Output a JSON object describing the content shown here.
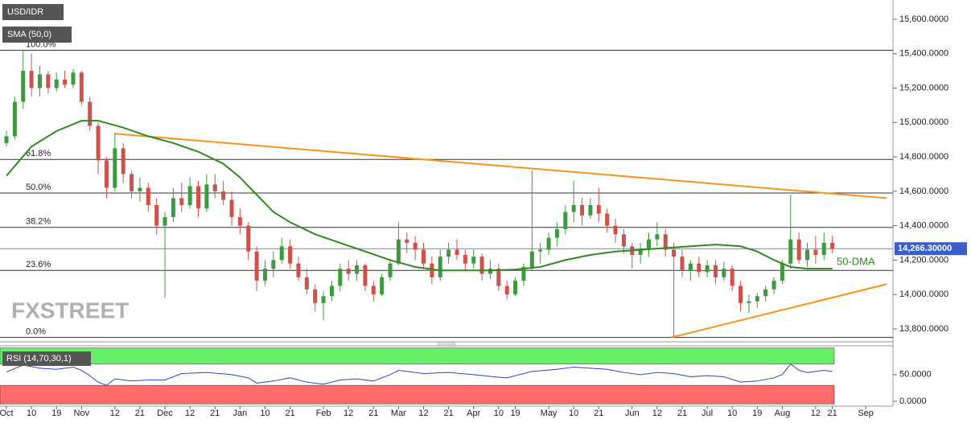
{
  "chart_data": {
    "type": "candlestick",
    "title": "USD/IDR",
    "indicator_label": "SMA (50,0)",
    "watermark": "FXSTREET",
    "up_color": "#3f9a3f",
    "down_color": "#d0504a",
    "categories": [
      "Oct",
      null,
      null,
      "10",
      null,
      null,
      "19",
      null,
      null,
      "Nov",
      null,
      null,
      null,
      "12",
      null,
      null,
      "21",
      null,
      null,
      "Dec",
      null,
      null,
      "12",
      null,
      null,
      "21",
      null,
      null,
      "Jan",
      null,
      null,
      "10",
      null,
      null,
      "21",
      null,
      null,
      null,
      "Feb",
      null,
      null,
      "12",
      null,
      null,
      "21",
      null,
      null,
      "Mar",
      null,
      null,
      "12",
      null,
      null,
      "21",
      null,
      null,
      "Apr",
      null,
      null,
      "10",
      null,
      "19",
      null,
      null,
      null,
      "May",
      null,
      null,
      "10",
      null,
      null,
      "21",
      null,
      null,
      null,
      "Jun",
      null,
      null,
      "12",
      null,
      null,
      "21",
      null,
      null,
      "Jul",
      null,
      null,
      "10",
      null,
      null,
      "19",
      null,
      null,
      "Aug",
      null,
      null,
      null,
      "12",
      null,
      "21",
      null,
      null,
      null,
      "Sep"
    ],
    "candles": [
      [
        14880,
        14950,
        14860,
        14920
      ],
      [
        14920,
        15150,
        14900,
        15120
      ],
      [
        15120,
        15420,
        15080,
        15300
      ],
      [
        15300,
        15400,
        15150,
        15200
      ],
      [
        15200,
        15330,
        15150,
        15280
      ],
      [
        15280,
        15300,
        15170,
        15200
      ],
      [
        15200,
        15290,
        15180,
        15250
      ],
      [
        15250,
        15300,
        15200,
        15220
      ],
      [
        15220,
        15310,
        15200,
        15290
      ],
      [
        15290,
        15300,
        15100,
        15120
      ],
      [
        15120,
        15150,
        14950,
        14980
      ],
      [
        14980,
        15000,
        14700,
        14780
      ],
      [
        14780,
        14800,
        14560,
        14620
      ],
      [
        14620,
        14940,
        14600,
        14850
      ],
      [
        14850,
        14880,
        14650,
        14700
      ],
      [
        14700,
        14720,
        14560,
        14600
      ],
      [
        14600,
        14680,
        14540,
        14620
      ],
      [
        14620,
        14650,
        14480,
        14520
      ],
      [
        14520,
        14560,
        14350,
        14400
      ],
      [
        14400,
        14480,
        13980,
        14450
      ],
      [
        14450,
        14620,
        14420,
        14560
      ],
      [
        14560,
        14650,
        14480,
        14520
      ],
      [
        14520,
        14680,
        14500,
        14630
      ],
      [
        14630,
        14660,
        14450,
        14500
      ],
      [
        14500,
        14700,
        14480,
        14640
      ],
      [
        14640,
        14700,
        14560,
        14600
      ],
      [
        14600,
        14660,
        14520,
        14550
      ],
      [
        14550,
        14600,
        14400,
        14450
      ],
      [
        14450,
        14500,
        14350,
        14400
      ],
      [
        14400,
        14420,
        14200,
        14250
      ],
      [
        14250,
        14280,
        14020,
        14080
      ],
      [
        14080,
        14200,
        14050,
        14150
      ],
      [
        14150,
        14250,
        14100,
        14200
      ],
      [
        14200,
        14330,
        14180,
        14280
      ],
      [
        14280,
        14320,
        14150,
        14180
      ],
      [
        14180,
        14220,
        14080,
        14100
      ],
      [
        14100,
        14150,
        14000,
        14030
      ],
      [
        14030,
        14060,
        13900,
        13950
      ],
      [
        13950,
        14020,
        13850,
        13990
      ],
      [
        13990,
        14080,
        13960,
        14050
      ],
      [
        14050,
        14180,
        14020,
        14150
      ],
      [
        14150,
        14200,
        14080,
        14120
      ],
      [
        14120,
        14200,
        14080,
        14170
      ],
      [
        14170,
        14180,
        14020,
        14050
      ],
      [
        14050,
        14080,
        13960,
        14000
      ],
      [
        14000,
        14120,
        13990,
        14100
      ],
      [
        14100,
        14200,
        14080,
        14180
      ],
      [
        14180,
        14420,
        14170,
        14320
      ],
      [
        14320,
        14360,
        14240,
        14300
      ],
      [
        14300,
        14340,
        14200,
        14260
      ],
      [
        14260,
        14300,
        14150,
        14180
      ],
      [
        14180,
        14220,
        14060,
        14100
      ],
      [
        14100,
        14260,
        14080,
        14220
      ],
      [
        14220,
        14300,
        14180,
        14260
      ],
      [
        14260,
        14320,
        14200,
        14230
      ],
      [
        14230,
        14260,
        14140,
        14180
      ],
      [
        14180,
        14260,
        14150,
        14220
      ],
      [
        14220,
        14240,
        14080,
        14120
      ],
      [
        14120,
        14200,
        14090,
        14150
      ],
      [
        14150,
        14180,
        14020,
        14050
      ],
      [
        14050,
        14080,
        13970,
        14000
      ],
      [
        14000,
        14100,
        13990,
        14080
      ],
      [
        14080,
        14180,
        14050,
        14160
      ],
      [
        14160,
        14720,
        14140,
        14250
      ],
      [
        14250,
        14300,
        14180,
        14260
      ],
      [
        14260,
        14360,
        14230,
        14330
      ],
      [
        14330,
        14420,
        14280,
        14380
      ],
      [
        14380,
        14520,
        14350,
        14480
      ],
      [
        14480,
        14660,
        14420,
        14520
      ],
      [
        14520,
        14560,
        14400,
        14460
      ],
      [
        14460,
        14560,
        14440,
        14520
      ],
      [
        14520,
        14620,
        14420,
        14470
      ],
      [
        14470,
        14500,
        14360,
        14400
      ],
      [
        14400,
        14440,
        14300,
        14350
      ],
      [
        14350,
        14380,
        14240,
        14280
      ],
      [
        14280,
        14300,
        14150,
        14230
      ],
      [
        14230,
        14300,
        14180,
        14260
      ],
      [
        14260,
        14360,
        14220,
        14320
      ],
      [
        14320,
        14420,
        14280,
        14350
      ],
      [
        14350,
        14380,
        14220,
        14260
      ],
      [
        14260,
        14300,
        13750,
        14220
      ],
      [
        14220,
        14260,
        14100,
        14140
      ],
      [
        14140,
        14200,
        14080,
        14180
      ],
      [
        14180,
        14220,
        14100,
        14130
      ],
      [
        14130,
        14200,
        14100,
        14170
      ],
      [
        14170,
        14200,
        14060,
        14100
      ],
      [
        14100,
        14190,
        14080,
        14150
      ],
      [
        14150,
        14170,
        14020,
        14050
      ],
      [
        14050,
        14080,
        13900,
        13950
      ],
      [
        13950,
        14000,
        13890,
        13960
      ],
      [
        13960,
        14010,
        13920,
        13990
      ],
      [
        13990,
        14050,
        13960,
        14030
      ],
      [
        14030,
        14100,
        14000,
        14080
      ],
      [
        14080,
        14200,
        14060,
        14180
      ],
      [
        14180,
        14580,
        14150,
        14320
      ],
      [
        14320,
        14360,
        14180,
        14200
      ],
      [
        14200,
        14300,
        14160,
        14260
      ],
      [
        14260,
        14340,
        14180,
        14230
      ],
      [
        14230,
        14360,
        14200,
        14300
      ],
      [
        14300,
        14340,
        14240,
        14266.3
      ],
      null,
      null,
      null,
      null
    ],
    "ylim": [
      13725,
      15712
    ],
    "yticks": [
      {
        "value": 15600,
        "label": "15,600.0000"
      },
      {
        "value": 15400,
        "label": "15,400.0000"
      },
      {
        "value": 15200,
        "label": "15,200.0000"
      },
      {
        "value": 15000,
        "label": "15,000.0000"
      },
      {
        "value": 14800,
        "label": "14,800.0000"
      },
      {
        "value": 14600,
        "label": "14,600.0000"
      },
      {
        "value": 14400,
        "label": "14,400.0000"
      },
      {
        "value": 14200,
        "label": "14,200.0000"
      },
      {
        "value": 14000,
        "label": "14,000.0000"
      },
      {
        "value": 13800,
        "label": "13,800.0000"
      }
    ],
    "last_price": {
      "value": 14266.3,
      "label": "14,266.30000",
      "color": "#3a5fcd"
    },
    "sma": {
      "name": "50-DMA",
      "color": "#2f8a1f",
      "x": [
        0,
        3,
        6,
        9,
        11,
        14,
        17,
        20,
        23,
        26,
        28,
        30,
        32,
        34,
        37,
        40,
        43,
        46,
        49,
        52,
        55,
        58,
        61,
        64,
        67,
        70,
        73,
        76,
        79,
        82,
        85,
        88,
        90,
        92,
        94,
        96,
        99
      ],
      "values": [
        14690,
        14860,
        14950,
        15010,
        15010,
        14970,
        14920,
        14880,
        14830,
        14760,
        14680,
        14580,
        14480,
        14420,
        14350,
        14300,
        14250,
        14200,
        14160,
        14140,
        14140,
        14140,
        14145,
        14160,
        14200,
        14230,
        14250,
        14260,
        14270,
        14280,
        14290,
        14280,
        14250,
        14200,
        14160,
        14150,
        14150
      ]
    },
    "trendlines": [
      {
        "color": "#f7941d",
        "x": [
          13,
          105.5
        ],
        "values": [
          14935,
          14560
        ]
      },
      {
        "color": "#f7941d",
        "x": [
          79.7,
          105.5
        ],
        "values": [
          13750,
          14060
        ]
      }
    ],
    "fib_levels": [
      {
        "label": "100.0%",
        "value": 15420
      },
      {
        "label": "61.8%",
        "value": 14785
      },
      {
        "label": "50.0%",
        "value": 14590
      },
      {
        "label": "38.2%",
        "value": 14390
      },
      {
        "label": "23.6%",
        "value": 14140
      },
      {
        "label": "0.0%",
        "value": 13750
      }
    ],
    "rsi": {
      "label": "RSI (14,70,30,1)",
      "color": "#3344cc",
      "overbought": 70,
      "oversold": 30,
      "ylim": [
        -9,
        104
      ],
      "yticks": [
        {
          "value": 50,
          "label": "50.0000"
        },
        {
          "value": 0,
          "label": "0.0000"
        }
      ],
      "x": [
        0,
        2,
        4,
        6,
        8,
        9,
        10,
        11,
        12,
        13,
        15,
        17,
        19,
        21,
        24,
        27,
        29,
        30,
        32,
        34,
        36,
        38,
        40,
        42,
        44,
        46,
        47,
        50,
        53,
        56,
        59,
        60,
        63,
        66,
        68,
        70,
        72,
        74,
        76,
        78,
        80,
        82,
        84,
        86,
        88,
        90,
        92,
        93,
        94,
        95,
        96,
        98,
        99
      ],
      "values": [
        55,
        68,
        62,
        60,
        64,
        58,
        48,
        36,
        30,
        42,
        38,
        40,
        40,
        52,
        54,
        50,
        44,
        34,
        38,
        44,
        36,
        32,
        40,
        42,
        38,
        50,
        58,
        52,
        54,
        50,
        45,
        44,
        56,
        60,
        64,
        62,
        60,
        54,
        50,
        54,
        52,
        46,
        48,
        46,
        36,
        38,
        44,
        50,
        70,
        58,
        54,
        58,
        56
      ]
    }
  }
}
